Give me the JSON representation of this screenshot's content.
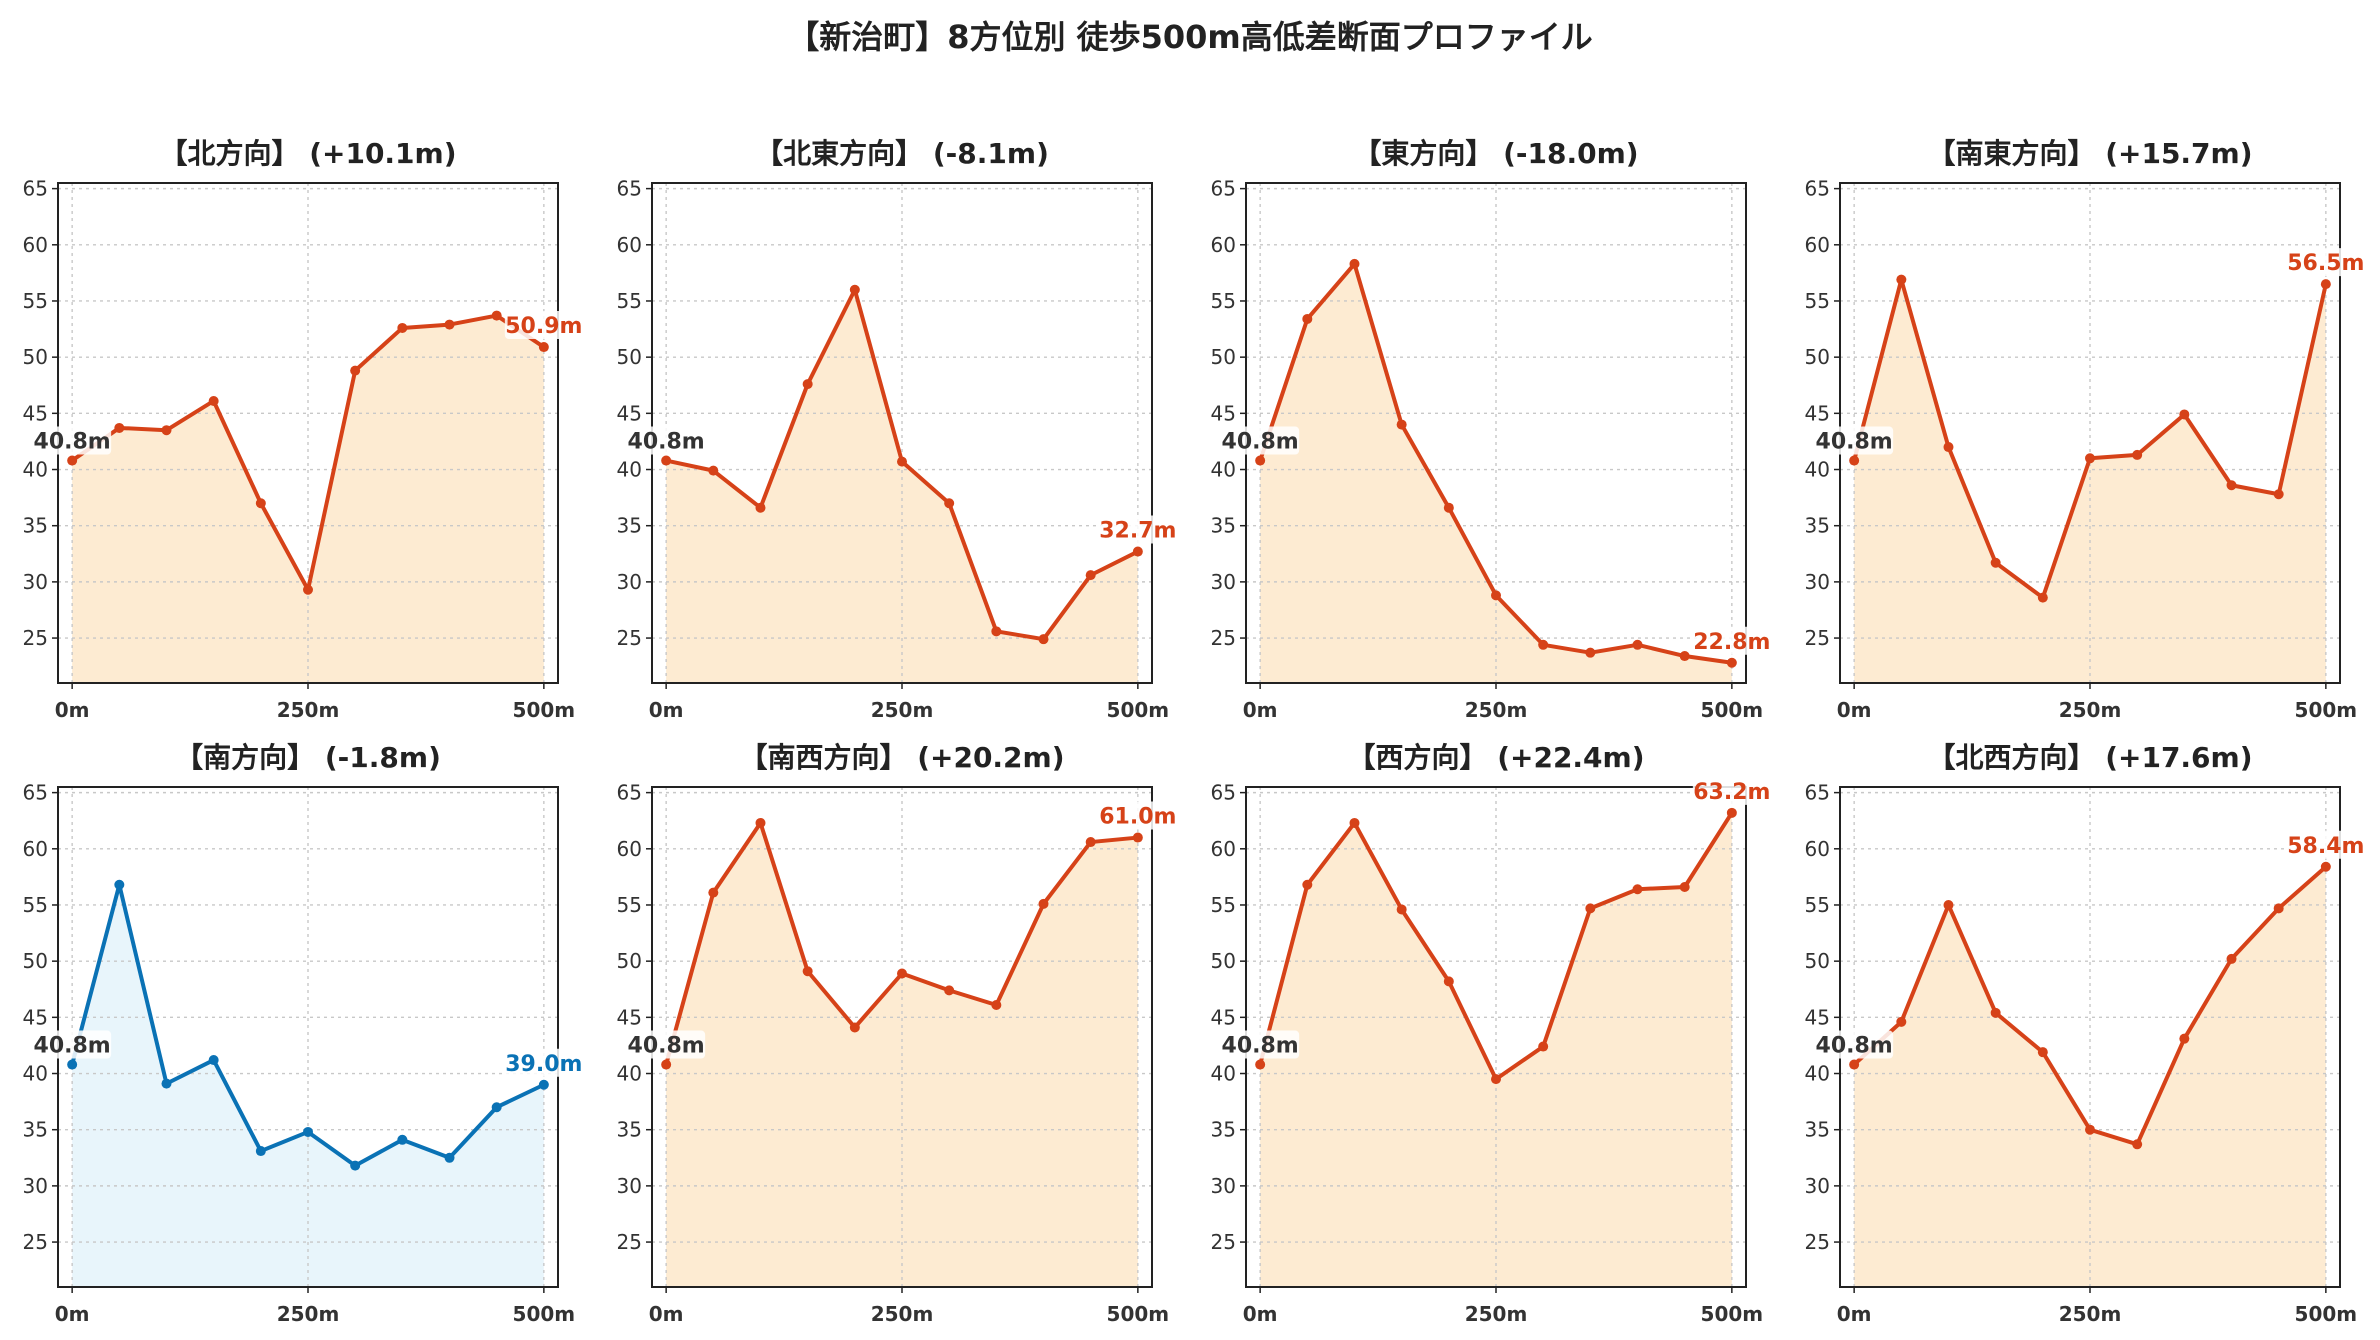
{
  "suptitle": "【新治町】8方位別 徒歩500m高低差断面プロファイル",
  "colors": {
    "up_line": "#d64218",
    "up_fill": "#fdebd2",
    "down_line": "#0a72b5",
    "down_fill": "#e8f5fb"
  },
  "chart_data": [
    {
      "type": "line",
      "title": "【北方向】 (+10.1m)",
      "x": [
        0,
        50,
        100,
        150,
        200,
        250,
        300,
        350,
        400,
        450,
        500
      ],
      "values": [
        40.8,
        43.7,
        43.5,
        46.1,
        37.0,
        29.3,
        48.8,
        52.6,
        52.9,
        53.7,
        50.9
      ],
      "x_ticks": [
        "0m",
        "250m",
        "500m"
      ],
      "y_ticks": [
        25,
        30,
        35,
        40,
        45,
        50,
        55,
        60,
        65
      ],
      "ylim": [
        21,
        65.5
      ],
      "xlim": [
        -15,
        515
      ],
      "start_label": "40.8m",
      "end_label": "50.9m",
      "color_scheme": "up",
      "fill": true,
      "grid": true
    },
    {
      "type": "line",
      "title": "【北東方向】 (-8.1m)",
      "x": [
        0,
        50,
        100,
        150,
        200,
        250,
        300,
        350,
        400,
        450,
        500
      ],
      "values": [
        40.8,
        39.9,
        36.6,
        47.6,
        56.0,
        40.7,
        37.0,
        25.6,
        24.9,
        30.6,
        32.7
      ],
      "x_ticks": [
        "0m",
        "250m",
        "500m"
      ],
      "y_ticks": [
        25,
        30,
        35,
        40,
        45,
        50,
        55,
        60,
        65
      ],
      "ylim": [
        21,
        65.5
      ],
      "xlim": [
        -15,
        515
      ],
      "start_label": "40.8m",
      "end_label": "32.7m",
      "color_scheme": "up",
      "fill": true,
      "grid": true
    },
    {
      "type": "line",
      "title": "【東方向】 (-18.0m)",
      "x": [
        0,
        50,
        100,
        150,
        200,
        250,
        300,
        350,
        400,
        450,
        500
      ],
      "values": [
        40.8,
        53.4,
        58.3,
        44.0,
        36.6,
        28.8,
        24.4,
        23.7,
        24.4,
        23.4,
        22.8
      ],
      "x_ticks": [
        "0m",
        "250m",
        "500m"
      ],
      "y_ticks": [
        25,
        30,
        35,
        40,
        45,
        50,
        55,
        60,
        65
      ],
      "ylim": [
        21,
        65.5
      ],
      "xlim": [
        -15,
        515
      ],
      "start_label": "40.8m",
      "end_label": "22.8m",
      "color_scheme": "up",
      "fill": true,
      "grid": true
    },
    {
      "type": "line",
      "title": "【南東方向】 (+15.7m)",
      "x": [
        0,
        50,
        100,
        150,
        200,
        250,
        300,
        350,
        400,
        450,
        500
      ],
      "values": [
        40.8,
        56.9,
        42.0,
        31.7,
        28.6,
        41.0,
        41.3,
        44.9,
        38.6,
        37.8,
        56.5
      ],
      "x_ticks": [
        "0m",
        "250m",
        "500m"
      ],
      "y_ticks": [
        25,
        30,
        35,
        40,
        45,
        50,
        55,
        60,
        65
      ],
      "ylim": [
        21,
        65.5
      ],
      "xlim": [
        -15,
        515
      ],
      "start_label": "40.8m",
      "end_label": "56.5m",
      "color_scheme": "up",
      "fill": true,
      "grid": true
    },
    {
      "type": "line",
      "title": "【南方向】 (-1.8m)",
      "x": [
        0,
        50,
        100,
        150,
        200,
        250,
        300,
        350,
        400,
        450,
        500
      ],
      "values": [
        40.8,
        56.8,
        39.1,
        41.2,
        33.1,
        34.8,
        31.8,
        34.1,
        32.5,
        37.0,
        39.0
      ],
      "x_ticks": [
        "0m",
        "250m",
        "500m"
      ],
      "y_ticks": [
        25,
        30,
        35,
        40,
        45,
        50,
        55,
        60,
        65
      ],
      "ylim": [
        21,
        65.5
      ],
      "xlim": [
        -15,
        515
      ],
      "start_label": "40.8m",
      "end_label": "39.0m",
      "color_scheme": "down",
      "fill": true,
      "grid": true
    },
    {
      "type": "line",
      "title": "【南西方向】 (+20.2m)",
      "x": [
        0,
        50,
        100,
        150,
        200,
        250,
        300,
        350,
        400,
        450,
        500
      ],
      "values": [
        40.8,
        56.1,
        62.3,
        49.1,
        44.1,
        48.9,
        47.4,
        46.1,
        55.1,
        60.6,
        61.0
      ],
      "x_ticks": [
        "0m",
        "250m",
        "500m"
      ],
      "y_ticks": [
        25,
        30,
        35,
        40,
        45,
        50,
        55,
        60,
        65
      ],
      "ylim": [
        21,
        65.5
      ],
      "xlim": [
        -15,
        515
      ],
      "start_label": "40.8m",
      "end_label": "61.0m",
      "color_scheme": "up",
      "fill": true,
      "grid": true
    },
    {
      "type": "line",
      "title": "【西方向】 (+22.4m)",
      "x": [
        0,
        50,
        100,
        150,
        200,
        250,
        300,
        350,
        400,
        450,
        500
      ],
      "values": [
        40.8,
        56.8,
        62.3,
        54.6,
        48.2,
        39.5,
        42.4,
        54.7,
        56.4,
        56.6,
        63.2
      ],
      "x_ticks": [
        "0m",
        "250m",
        "500m"
      ],
      "y_ticks": [
        25,
        30,
        35,
        40,
        45,
        50,
        55,
        60,
        65
      ],
      "ylim": [
        21,
        65.5
      ],
      "xlim": [
        -15,
        515
      ],
      "start_label": "40.8m",
      "end_label": "63.2m",
      "color_scheme": "up",
      "fill": true,
      "grid": true
    },
    {
      "type": "line",
      "title": "【北西方向】 (+17.6m)",
      "x": [
        0,
        50,
        100,
        150,
        200,
        250,
        300,
        350,
        400,
        450,
        500
      ],
      "values": [
        40.8,
        44.6,
        55.0,
        45.4,
        41.9,
        35.0,
        33.7,
        43.1,
        50.2,
        54.7,
        58.4
      ],
      "x_ticks": [
        "0m",
        "250m",
        "500m"
      ],
      "y_ticks": [
        25,
        30,
        35,
        40,
        45,
        50,
        55,
        60,
        65
      ],
      "ylim": [
        21,
        65.5
      ],
      "xlim": [
        -15,
        515
      ],
      "start_label": "40.8m",
      "end_label": "58.4m",
      "color_scheme": "up",
      "fill": true,
      "grid": true
    }
  ]
}
